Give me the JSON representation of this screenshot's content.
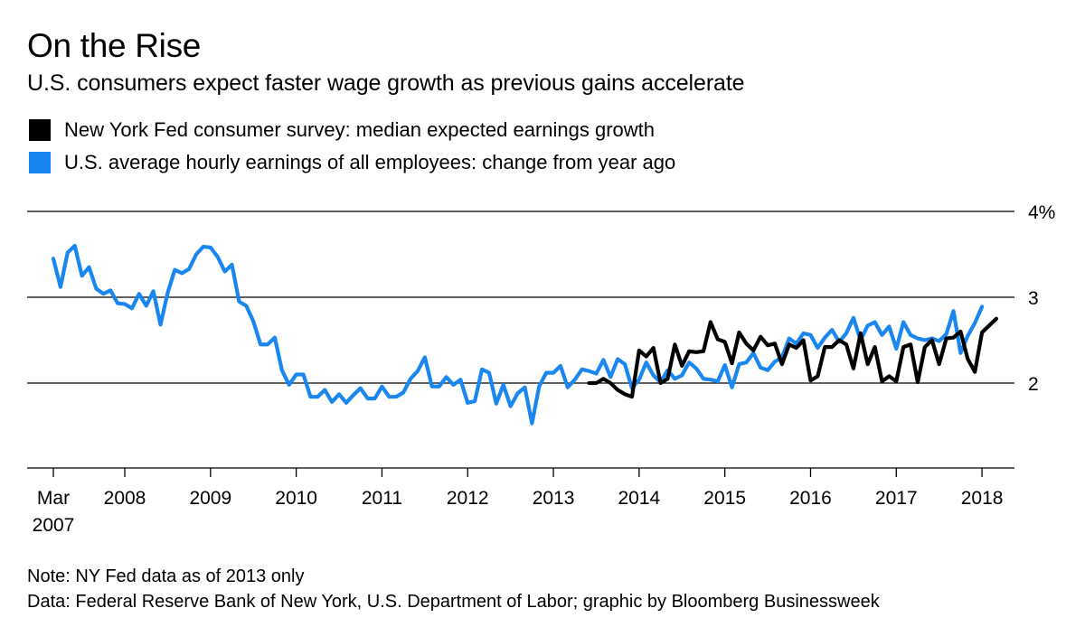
{
  "title": "On the Rise",
  "subtitle": "U.S. consumers expect faster wage growth as previous gains accelerate",
  "footnote": "Note: NY Fed data as of 2013 only",
  "source": "Data: Federal Reserve Bank of New York, U.S. Department of Labor; graphic by Bloomberg Businessweek",
  "chart_data": {
    "type": "line",
    "title": "On the Rise",
    "subtitle": "U.S. consumers expect faster wage growth as previous gains accelerate",
    "x_start": "2007-03",
    "x_frequency": "monthly",
    "xlim": [
      "2007-03",
      "2018-02"
    ],
    "ylim": [
      1,
      4
    ],
    "y_axis_position": "right",
    "y_ticks": [
      {
        "value": 4,
        "label": "4%"
      },
      {
        "value": 3,
        "label": "3"
      },
      {
        "value": 2,
        "label": "2"
      }
    ],
    "x_ticks": [
      {
        "date": "2007-03",
        "label": "Mar",
        "label2": "2007"
      },
      {
        "date": "2008-01",
        "label": "2008"
      },
      {
        "date": "2009-01",
        "label": "2009"
      },
      {
        "date": "2010-01",
        "label": "2010"
      },
      {
        "date": "2011-01",
        "label": "2011"
      },
      {
        "date": "2012-01",
        "label": "2012"
      },
      {
        "date": "2013-01",
        "label": "2013"
      },
      {
        "date": "2014-01",
        "label": "2014"
      },
      {
        "date": "2015-01",
        "label": "2015"
      },
      {
        "date": "2016-01",
        "label": "2016"
      },
      {
        "date": "2017-01",
        "label": "2017"
      },
      {
        "date": "2018-01",
        "label": "2018"
      }
    ],
    "grid": "horizontal",
    "legend_position": "top-left",
    "series": [
      {
        "name": "U.S. average hourly earnings of all employees: change from year ago",
        "color": "#1a86f0",
        "start": "2007-03",
        "values": [
          3.45,
          3.12,
          3.52,
          3.6,
          3.25,
          3.35,
          3.1,
          3.04,
          3.08,
          2.93,
          2.92,
          2.87,
          3.04,
          2.9,
          3.07,
          2.68,
          3.05,
          3.32,
          3.28,
          3.33,
          3.5,
          3.59,
          3.58,
          3.47,
          3.3,
          3.38,
          2.95,
          2.9,
          2.72,
          2.45,
          2.45,
          2.53,
          2.15,
          1.98,
          2.1,
          2.1,
          1.84,
          1.84,
          1.92,
          1.78,
          1.87,
          1.77,
          1.86,
          1.94,
          1.82,
          1.82,
          1.96,
          1.84,
          1.84,
          1.89,
          2.05,
          2.14,
          2.3,
          1.96,
          1.96,
          2.07,
          1.98,
          2.04,
          1.77,
          1.79,
          2.16,
          2.12,
          1.76,
          1.98,
          1.73,
          1.88,
          1.95,
          1.53,
          1.96,
          2.12,
          2.12,
          2.2,
          1.95,
          2.04,
          2.16,
          2.14,
          2.11,
          2.27,
          2.07,
          2.28,
          2.22,
          1.94,
          2.04,
          2.24,
          2.09,
          2.01,
          2.15,
          2.05,
          2.09,
          2.24,
          2.17,
          2.05,
          2.04,
          2.02,
          2.21,
          1.95,
          2.22,
          2.24,
          2.35,
          2.18,
          2.15,
          2.25,
          2.3,
          2.52,
          2.46,
          2.58,
          2.56,
          2.41,
          2.53,
          2.62,
          2.48,
          2.58,
          2.76,
          2.5,
          2.67,
          2.71,
          2.56,
          2.66,
          2.4,
          2.71,
          2.56,
          2.52,
          2.5,
          2.52,
          2.49,
          2.57,
          2.84,
          2.35,
          2.55,
          2.7,
          2.89
        ]
      },
      {
        "name": "New York Fed consumer survey: median expected earnings growth",
        "color": "#000000",
        "start": "2013-06",
        "values": [
          2.0,
          2.0,
          2.05,
          2.0,
          1.92,
          1.87,
          1.84,
          2.38,
          2.31,
          2.41,
          2.0,
          2.05,
          2.45,
          2.2,
          2.37,
          2.36,
          2.37,
          2.71,
          2.51,
          2.48,
          2.23,
          2.59,
          2.46,
          2.38,
          2.54,
          2.44,
          2.46,
          2.22,
          2.45,
          2.41,
          2.5,
          2.03,
          2.08,
          2.42,
          2.42,
          2.5,
          2.45,
          2.17,
          2.58,
          2.22,
          2.42,
          2.02,
          2.08,
          2.02,
          2.42,
          2.45,
          2.01,
          2.42,
          2.5,
          2.22,
          2.52,
          2.53,
          2.6,
          2.28,
          2.13,
          2.59,
          2.67,
          2.75
        ]
      }
    ]
  }
}
